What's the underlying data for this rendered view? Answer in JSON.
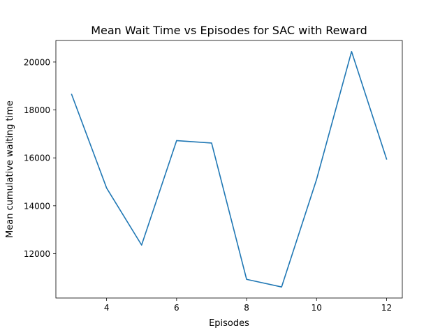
{
  "chart_data": {
    "type": "line",
    "title": "Mean Wait Time vs Episodes for SAC with Reward",
    "xlabel": "Episodes",
    "ylabel": "Mean cumulative waiting time",
    "xlim": [
      2.55,
      12.45
    ],
    "ylim": [
      10150,
      20900
    ],
    "x_ticks": [
      4,
      6,
      8,
      10,
      12
    ],
    "y_ticks": [
      12000,
      14000,
      16000,
      18000,
      20000
    ],
    "grid": false,
    "legend": "none",
    "series": [
      {
        "color": "#1f77b4",
        "x": [
          3,
          4,
          5,
          6,
          7,
          8,
          9,
          10,
          11,
          12
        ],
        "y": [
          18650,
          14740,
          12360,
          16720,
          16620,
          10930,
          10610,
          15100,
          20440,
          15950
        ]
      }
    ]
  }
}
